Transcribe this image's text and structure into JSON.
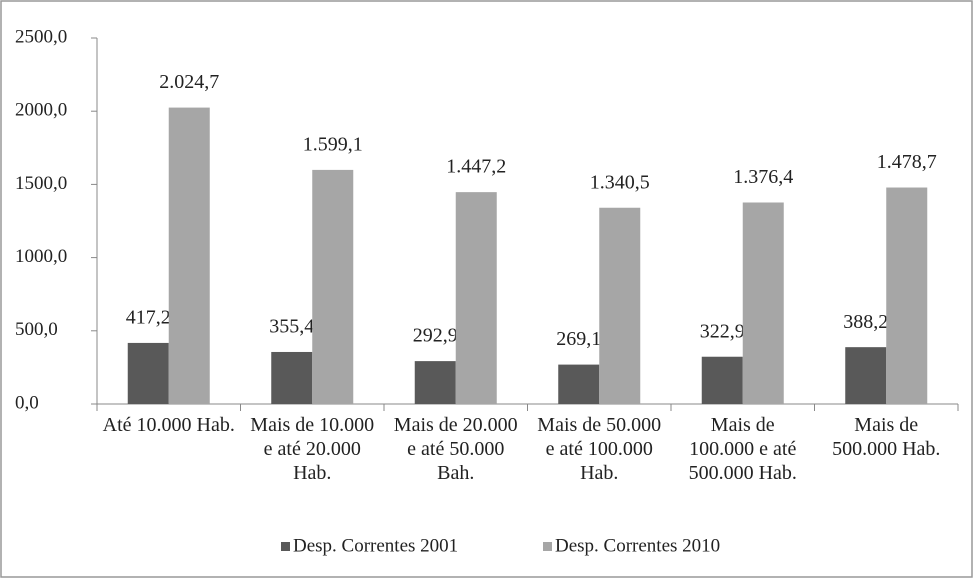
{
  "chart_data": {
    "type": "bar",
    "categories": [
      "Até 10.000 Hab.",
      "Mais de 10.000 e até 20.000 Hab.",
      "Mais de 20.000 e até 50.000 Bah.",
      "Mais de 50.000 e até 100.000 Hab.",
      "Mais de 100.000 e até 500.000 Hab.",
      "Mais de 500.000 Hab."
    ],
    "series": [
      {
        "name": "Desp. Correntes 2001",
        "color": "#595959",
        "values": [
          417.2,
          355.4,
          292.9,
          269.1,
          322.9,
          388.2
        ],
        "value_labels": [
          "417,2",
          "355,4",
          "292,9",
          "269,1",
          "322,9",
          "388,2"
        ]
      },
      {
        "name": "Desp. Correntes 2010",
        "color": "#a6a6a6",
        "values": [
          2024.7,
          1599.1,
          1447.2,
          1340.5,
          1376.4,
          1478.7
        ],
        "value_labels": [
          "2.024,7",
          "1.599,1",
          "1.447,2",
          "1.340,5",
          "1.376,4",
          "1.478,7"
        ]
      }
    ],
    "ylim": [
      0,
      2500
    ],
    "yticks": [
      {
        "value": 0,
        "label": "0,0"
      },
      {
        "value": 500,
        "label": "500,0"
      },
      {
        "value": 1000,
        "label": "1000,0"
      },
      {
        "value": 1500,
        "label": "1500,0"
      },
      {
        "value": 2000,
        "label": "2000,0"
      },
      {
        "value": 2500,
        "label": "2500,0"
      }
    ],
    "legend": "bottom"
  }
}
